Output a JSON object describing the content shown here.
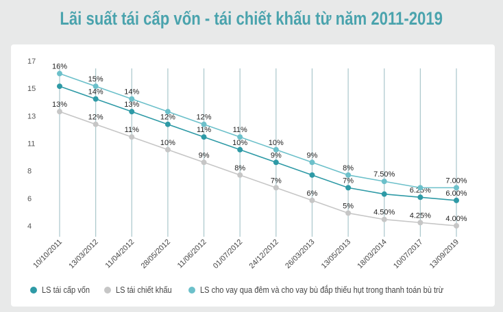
{
  "title": "Lãi suất tái cấp vốn - tái chiết khấu từ năm 2011-2019",
  "chart_data": {
    "type": "line",
    "title": "Lãi suất tái cấp vốn - tái chiết khấu từ năm 2011-2019",
    "categories": [
      "10/10/2011",
      "13/03/2012",
      "11/04/2012",
      "28/05/2012",
      "11/06/2012",
      "01/07/2012",
      "24/12/2012",
      "26/03/2013",
      "13/05/2013",
      "18/03/2014",
      "10/07/2017",
      "13/09/2019"
    ],
    "ylim": [
      4,
      17
    ],
    "ytick_labels": [
      "17",
      "15",
      "13",
      "11",
      "8",
      "6",
      "4"
    ],
    "grid": "vertical",
    "legend": "bottom",
    "series": [
      {
        "name": "LS tái cấp vốn",
        "color": "#2e9aa6",
        "values": [
          15,
          14,
          13,
          12,
          11,
          10,
          9,
          8,
          7,
          6.5,
          6.25,
          6
        ],
        "labels": [
          "",
          "14%",
          "13%",
          "12%",
          "11%",
          "10%",
          "9%",
          "",
          "7%",
          "",
          "6.25%",
          "6.00%"
        ]
      },
      {
        "name": "LS tái chiết khấu",
        "color": "#c6c6c6",
        "values": [
          13,
          12,
          11,
          10,
          9,
          8,
          7,
          6,
          5,
          4.5,
          4.25,
          4
        ],
        "labels": [
          "13%",
          "12%",
          "11%",
          "10%",
          "9%",
          "8%",
          "7%",
          "6%",
          "5%",
          "4.50%",
          "4.25%",
          "4.00%"
        ]
      },
      {
        "name": "LS cho vay qua đêm và cho vay bù đắp thiếu hụt trong thanh toán bù trừ",
        "color": "#6cc0ca",
        "values": [
          16,
          15,
          14,
          13,
          12,
          11,
          10,
          9,
          8,
          7.5,
          7,
          7
        ],
        "labels": [
          "16%",
          "15%",
          "14%",
          "",
          "12%",
          "11%",
          "10%",
          "9%",
          "8%",
          "7.50%",
          "",
          "7.00%"
        ]
      }
    ]
  }
}
